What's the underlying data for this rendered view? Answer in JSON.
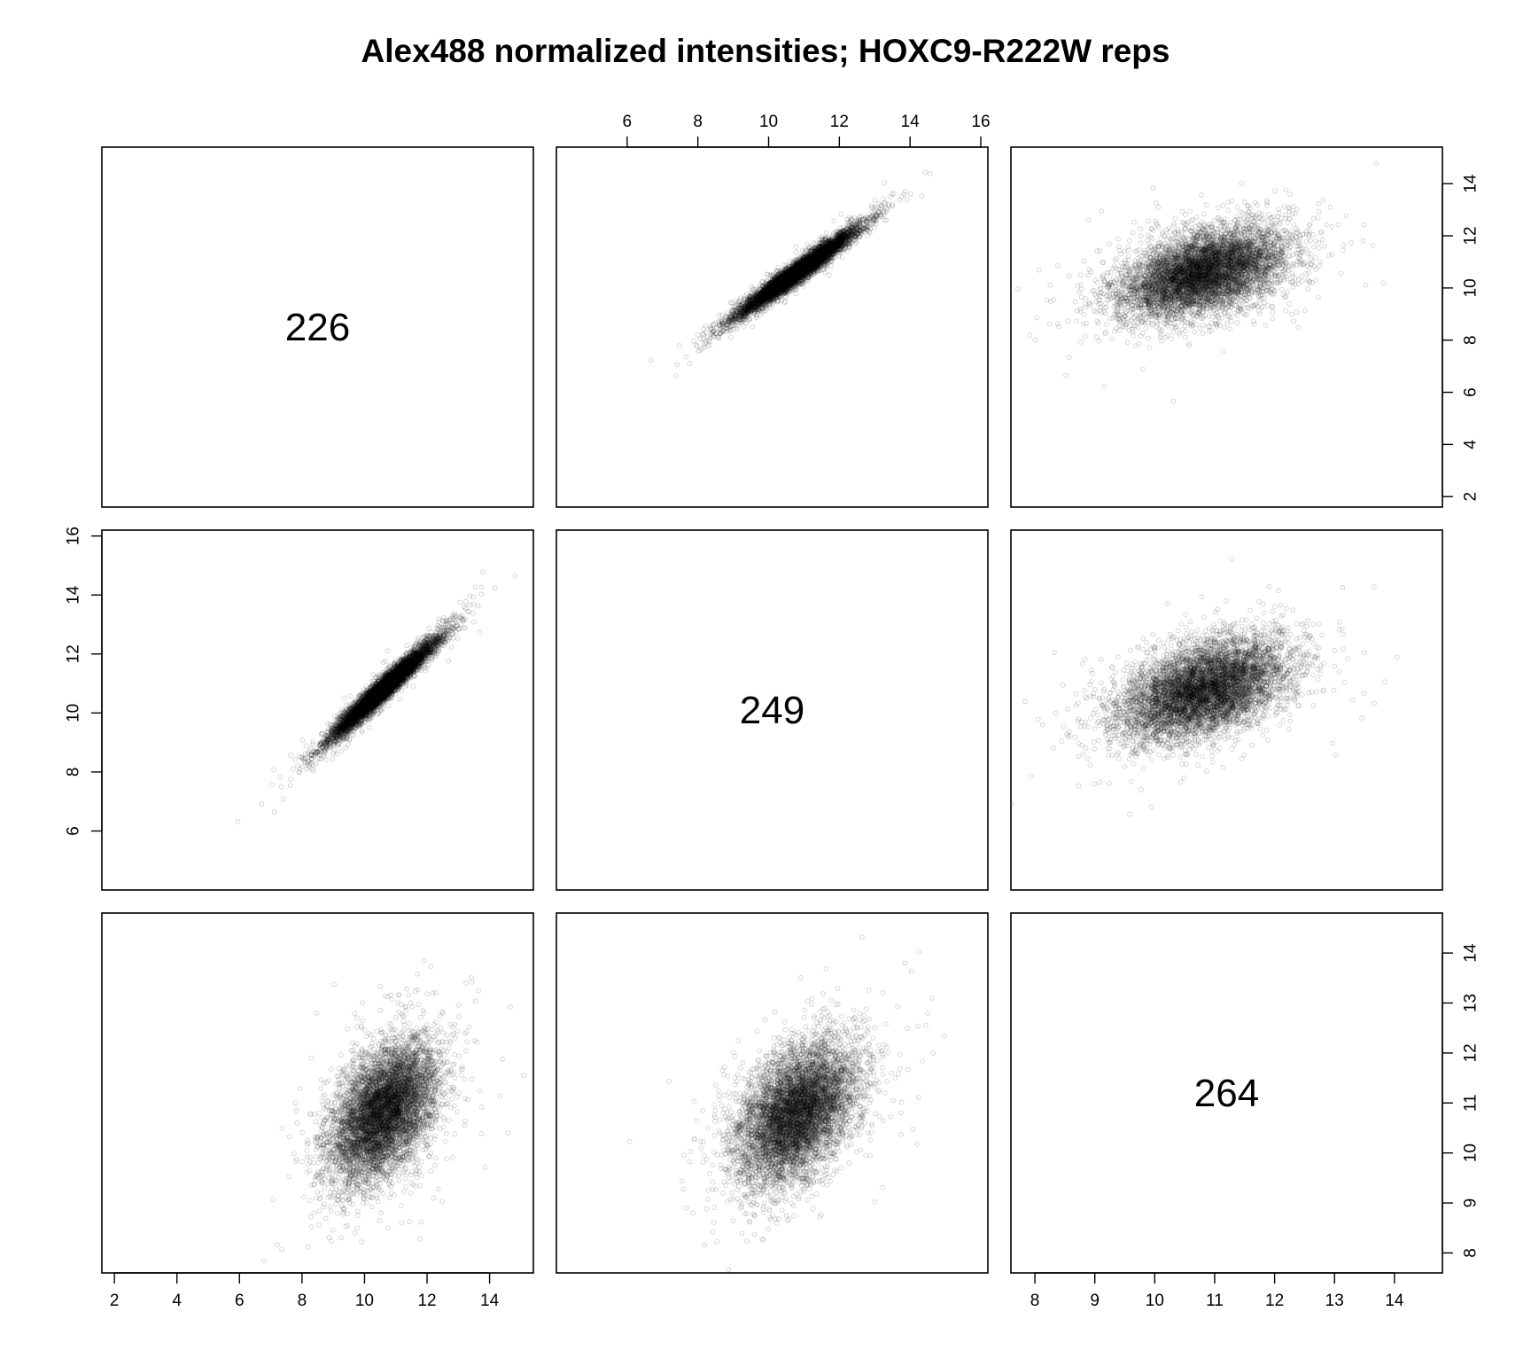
{
  "chart_data": {
    "type": "scatter",
    "title": "Alex488 normalized intensities; HOXC9-R222W reps",
    "layout": "scatterplot-matrix",
    "diagonal_labels": [
      "226",
      "249",
      "264"
    ],
    "variables": [
      {
        "name": "226",
        "range": [
          1.6,
          15.4
        ],
        "ticks": [
          2,
          4,
          6,
          8,
          10,
          12,
          14
        ],
        "center": [
          10.6,
          10.6
        ],
        "sd": 0.85,
        "max": 15.6
      },
      {
        "name": "249",
        "range": [
          4.0,
          16.2
        ],
        "ticks": [
          6,
          8,
          10,
          12,
          14,
          16
        ],
        "center": [
          10.8,
          10.8
        ],
        "sd": 0.85,
        "max": 15.7
      },
      {
        "name": "264",
        "range": [
          7.6,
          14.8
        ],
        "ticks": [
          8,
          9,
          10,
          11,
          12,
          13,
          14
        ],
        "center": [
          10.8,
          10.8
        ],
        "sd": 0.7,
        "max": 14.6
      }
    ],
    "panels": [
      {
        "row": 0,
        "col": 1,
        "x": "249",
        "y": "226",
        "correlation": 0.97,
        "point_count": 6500
      },
      {
        "row": 0,
        "col": 2,
        "x": "264",
        "y": "226",
        "correlation": 0.45,
        "point_count": 6500
      },
      {
        "row": 1,
        "col": 0,
        "x": "226",
        "y": "249",
        "correlation": 0.97,
        "point_count": 6500
      },
      {
        "row": 1,
        "col": 2,
        "x": "264",
        "y": "249",
        "correlation": 0.45,
        "point_count": 6500
      },
      {
        "row": 2,
        "col": 0,
        "x": "226",
        "y": "264",
        "correlation": 0.45,
        "point_count": 6500
      },
      {
        "row": 2,
        "col": 1,
        "x": "249",
        "y": "264",
        "correlation": 0.45,
        "point_count": 6500
      }
    ],
    "axes": {
      "top_of_col_1": "249",
      "bottom_of_col_0": "226",
      "bottom_of_col_2": "264",
      "left_of_row_1": "249",
      "right_of_row_0": "226",
      "right_of_row_2": "264"
    },
    "grid": false,
    "legend": "none",
    "point_color": "#000000"
  }
}
